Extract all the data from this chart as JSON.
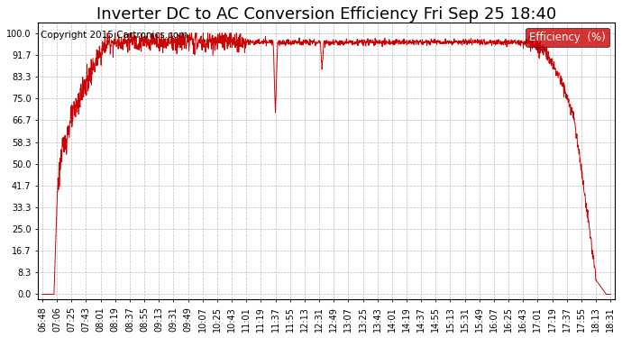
{
  "title": "Inverter DC to AC Conversion Efficiency Fri Sep 25 18:40",
  "copyright": "Copyright 2015 Cartronics.com",
  "legend_label": "Efficiency  (%)",
  "legend_bg": "#cc0000",
  "legend_text_color": "#ffffff",
  "line_color": "#cc0000",
  "bg_color": "#ffffff",
  "grid_color": "#bbbbbb",
  "yticks": [
    0.0,
    8.3,
    16.7,
    25.0,
    33.3,
    41.7,
    50.0,
    58.3,
    66.7,
    75.0,
    83.3,
    91.7,
    100.0
  ],
  "ylim": [
    -2,
    104
  ],
  "xtick_labels": [
    "06:48",
    "07:06",
    "07:25",
    "07:43",
    "08:01",
    "08:19",
    "08:37",
    "08:55",
    "09:13",
    "09:31",
    "09:49",
    "10:07",
    "10:25",
    "10:43",
    "11:01",
    "11:19",
    "11:37",
    "11:55",
    "12:13",
    "12:31",
    "12:49",
    "13:07",
    "13:25",
    "13:43",
    "14:01",
    "14:19",
    "14:37",
    "14:55",
    "15:13",
    "15:31",
    "15:49",
    "16:07",
    "16:25",
    "16:43",
    "17:01",
    "17:19",
    "17:37",
    "17:55",
    "18:13",
    "18:31"
  ],
  "title_fontsize": 13,
  "copyright_fontsize": 7.5,
  "tick_fontsize": 7,
  "legend_fontsize": 8.5
}
